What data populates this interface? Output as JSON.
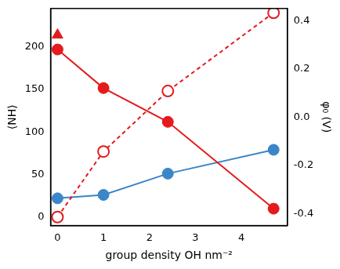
{
  "chart_data": {
    "type": "scatter",
    "x_label": "group density OH nm⁻²",
    "y_label": "⟨NH⟩",
    "y2_label": "φ₀ (V)",
    "xlim": [
      -0.15,
      5
    ],
    "xticks": [
      0,
      1,
      2,
      3,
      4
    ],
    "ylim": [
      -10,
      245
    ],
    "yticks": [
      0,
      50,
      100,
      150,
      200
    ],
    "y2lim": [
      -0.45,
      0.45
    ],
    "y2ticks": [
      -0.4,
      -0.2,
      {
        "value": 0,
        "label": "0.0"
      },
      0.2,
      0.4
    ],
    "grid": false,
    "series": [
      {
        "color": "#e41a1c",
        "marker": "filled_circle",
        "line_style": "solid",
        "axis": "y2",
        "x": [
          0,
          1,
          2.4,
          4.7
        ],
        "values": [
          0.28,
          0.12,
          -0.02,
          -0.38
        ]
      },
      {
        "color": "#e41a1c",
        "marker": "open_circle",
        "line_style": "dashed",
        "x": [
          0,
          1,
          2.4,
          4.7
        ],
        "values": [
          0,
          77,
          148,
          240
        ]
      },
      {
        "color": "#3a86c8",
        "marker": "filled_circle",
        "line_style": "solid",
        "x": [
          0,
          1,
          2.4,
          4.7
        ],
        "values": [
          22,
          26,
          51,
          79
        ]
      },
      {
        "color": "#e41a1c",
        "marker": "triangle",
        "line_style": "none",
        "axis": "y2",
        "x": [
          0
        ],
        "values": [
          0.34
        ]
      }
    ]
  }
}
